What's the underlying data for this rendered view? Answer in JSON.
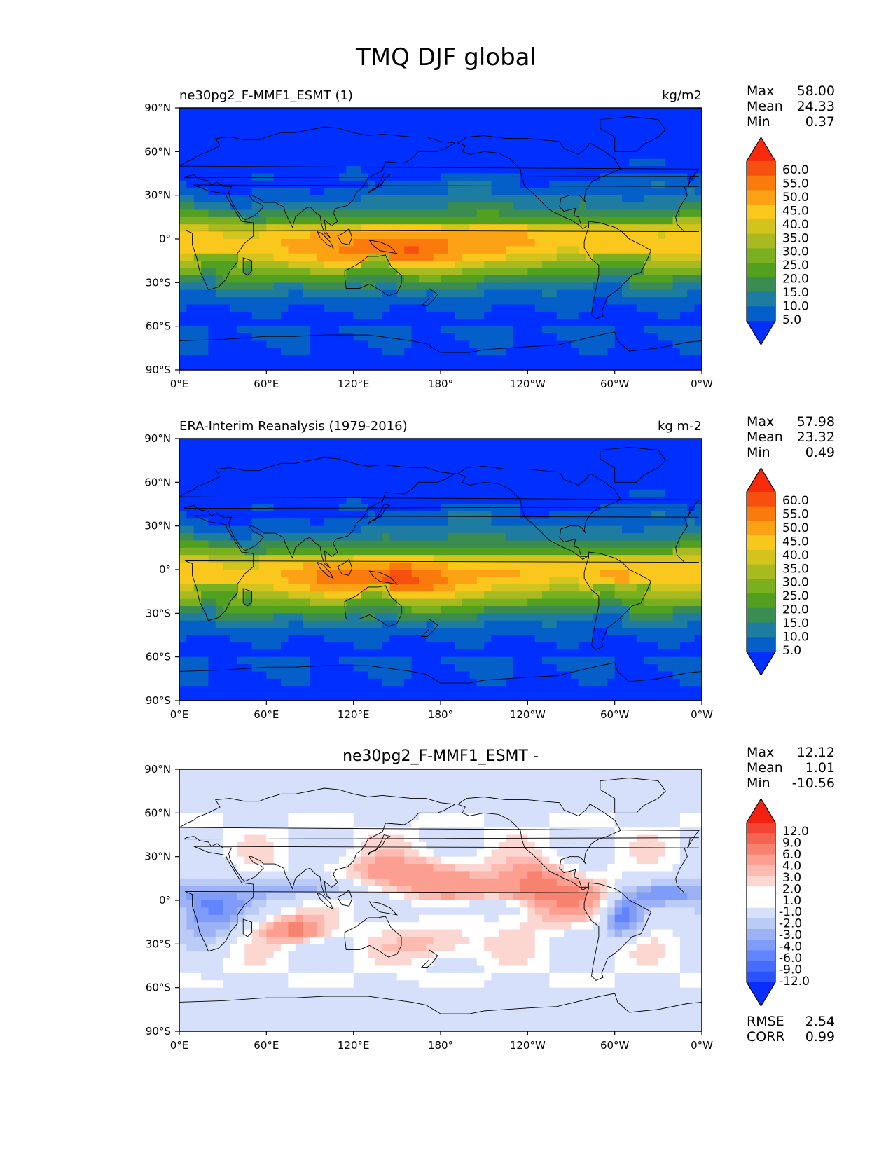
{
  "figure": {
    "title": "TMQ DJF global"
  },
  "colors": {
    "fill_scale": [
      "#0030ff",
      "#0460c8",
      "#1e7ca0",
      "#3a8c50",
      "#52a020",
      "#7ab020",
      "#a8ba20",
      "#d2c41c",
      "#fac81c",
      "#fca214",
      "#fa7a0c",
      "#f55010",
      "#fb2a0a"
    ],
    "diff_scale": [
      "#0a2dff",
      "#2a52ff",
      "#466cff",
      "#6284ff",
      "#7e9cf8",
      "#9cb2f4",
      "#bacbf6",
      "#d6e0fa",
      "#ffffff",
      "#ffffff",
      "#fcd6d0",
      "#fcbab0",
      "#fc9e90",
      "#f88270",
      "#f56450",
      "#f44434",
      "#f22010"
    ],
    "land_outline": "#000000",
    "box": "#000000"
  },
  "chart_data": [
    {
      "type": "heatmap",
      "panel": "test",
      "title_left": "ne30pg2_F-MMF1_ESMT (1)",
      "title_center": "",
      "title_right": "kg/m2",
      "x_ticks": [
        "0°E",
        "60°E",
        "120°E",
        "180°",
        "120°W",
        "60°W",
        "0°W"
      ],
      "y_ticks": [
        "90°N",
        "60°N",
        "30°N",
        "0°",
        "30°S",
        "60°S",
        "90°S"
      ],
      "xlim": [
        0,
        360
      ],
      "ylim": [
        -90,
        90
      ],
      "stats": [
        {
          "label": "Max",
          "value": "58.00"
        },
        {
          "label": "Mean",
          "value": "24.33"
        },
        {
          "label": "Min",
          "value": "0.37"
        }
      ],
      "colorbar_levels": [
        "60.0",
        "55.0",
        "50.0",
        "45.0",
        "40.0",
        "35.0",
        "30.0",
        "25.0",
        "20.0",
        "15.0",
        "10.0",
        "5.0"
      ],
      "colorbar_extend": "both",
      "diff_stats": []
    },
    {
      "type": "heatmap",
      "panel": "reference",
      "title_left": "ERA-Interim Reanalysis (1979-2016)",
      "title_center": "",
      "title_right": "kg m-2",
      "x_ticks": [
        "0°E",
        "60°E",
        "120°E",
        "180°",
        "120°W",
        "60°W",
        "0°W"
      ],
      "y_ticks": [
        "90°N",
        "60°N",
        "30°N",
        "0°",
        "30°S",
        "60°S",
        "90°S"
      ],
      "xlim": [
        0,
        360
      ],
      "ylim": [
        -90,
        90
      ],
      "stats": [
        {
          "label": "Max",
          "value": "57.98"
        },
        {
          "label": "Mean",
          "value": "23.32"
        },
        {
          "label": "Min",
          "value": "0.49"
        }
      ],
      "colorbar_levels": [
        "60.0",
        "55.0",
        "50.0",
        "45.0",
        "40.0",
        "35.0",
        "30.0",
        "25.0",
        "20.0",
        "15.0",
        "10.0",
        "5.0"
      ],
      "colorbar_extend": "both",
      "diff_stats": []
    },
    {
      "type": "heatmap",
      "panel": "difference",
      "title_left": "",
      "title_center": "ne30pg2_F-MMF1_ESMT -",
      "title_right": "",
      "x_ticks": [
        "0°E",
        "60°E",
        "120°E",
        "180°",
        "120°W",
        "60°W",
        "0°W"
      ],
      "y_ticks": [
        "90°N",
        "60°N",
        "30°N",
        "0°",
        "30°S",
        "60°S",
        "90°S"
      ],
      "xlim": [
        0,
        360
      ],
      "ylim": [
        -90,
        90
      ],
      "stats": [
        {
          "label": "Max",
          "value": "12.12"
        },
        {
          "label": "Mean",
          "value": "1.01"
        },
        {
          "label": "Min",
          "value": "-10.56"
        }
      ],
      "colorbar_levels": [
        "12.0",
        "9.0",
        "6.0",
        "4.0",
        "3.0",
        "2.0",
        "1.0",
        "-1.0",
        "-2.0",
        "-3.0",
        "-4.0",
        "-6.0",
        "-9.0",
        "-12.0"
      ],
      "colorbar_extend": "both",
      "diff_stats": [
        {
          "label": "RMSE",
          "value": "2.54"
        },
        {
          "label": "CORR",
          "value": "0.99"
        }
      ]
    }
  ]
}
